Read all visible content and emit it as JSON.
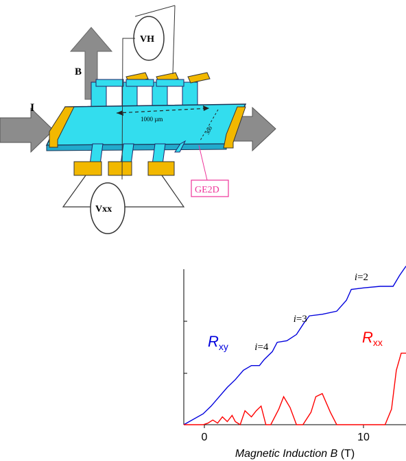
{
  "diagram": {
    "labels": {
      "b_field": "B",
      "current": "I",
      "hall_voltmeter": "VH",
      "longitudinal_voltmeter": "Vxx",
      "length": "1000 µm",
      "width": "300",
      "sample_tag": "GE2D"
    },
    "colors": {
      "channel": "#33ddee",
      "contacts": "#f2b800",
      "arrows": "#8c8c8c",
      "tag": "#ee3399"
    }
  },
  "chart_data": {
    "type": "line",
    "xlabel": "Magnetic Induction",
    "xlabel_var": "B",
    "xlabel_unit": "(T)",
    "xticks": [
      "0",
      "10"
    ],
    "xlim": [
      -1.2,
      12.6
    ],
    "ylim": [
      0,
      1
    ],
    "grid": false,
    "series": [
      {
        "name": "R",
        "sub": "xy",
        "color": "#0000dd",
        "x": [
          -1.2,
          0,
          0.5,
          1,
          1.5,
          2,
          2.5,
          3,
          3.5,
          3.8,
          4.3,
          4.6,
          5.2,
          5.8,
          6.3,
          6.6,
          7.4,
          8.3,
          8.9,
          9.2,
          10.0,
          11.0,
          11.8,
          12.2,
          12.6
        ],
        "y": [
          0,
          0.07,
          0.12,
          0.18,
          0.24,
          0.29,
          0.35,
          0.38,
          0.38,
          0.42,
          0.47,
          0.53,
          0.54,
          0.58,
          0.66,
          0.7,
          0.71,
          0.73,
          0.8,
          0.87,
          0.88,
          0.89,
          0.89,
          0.96,
          1.02
        ]
      },
      {
        "name": "R",
        "sub": "xx",
        "color": "#ff0000",
        "x": [
          -1.2,
          0,
          0.3,
          0.6,
          0.9,
          1.2,
          1.5,
          1.8,
          2.0,
          2.3,
          2.6,
          3.0,
          3.3,
          3.6,
          3.9,
          4.2,
          4.7,
          5.0,
          5.4,
          5.8,
          6.2,
          6.7,
          7.0,
          7.4,
          7.9,
          8.3,
          8.8,
          9.5,
          10.5,
          11.3,
          11.7,
          12.0,
          12.3,
          12.6
        ],
        "y": [
          0,
          0.0,
          0.01,
          0.03,
          0.01,
          0.05,
          0.02,
          0.06,
          0.02,
          0.0,
          0.09,
          0.05,
          0.09,
          0.12,
          0.0,
          0.0,
          0.1,
          0.18,
          0.11,
          0.0,
          0.0,
          0.08,
          0.18,
          0.2,
          0.08,
          0.0,
          0.0,
          0.0,
          0.0,
          0.0,
          0.1,
          0.35,
          0.46,
          0.46
        ]
      }
    ],
    "annotations": [
      {
        "text": "i=2",
        "x": 9.4,
        "y": 0.93
      },
      {
        "text": "i=3",
        "x": 5.6,
        "y": 0.66
      },
      {
        "text": "i=4",
        "x": 3.2,
        "y": 0.48
      }
    ]
  }
}
